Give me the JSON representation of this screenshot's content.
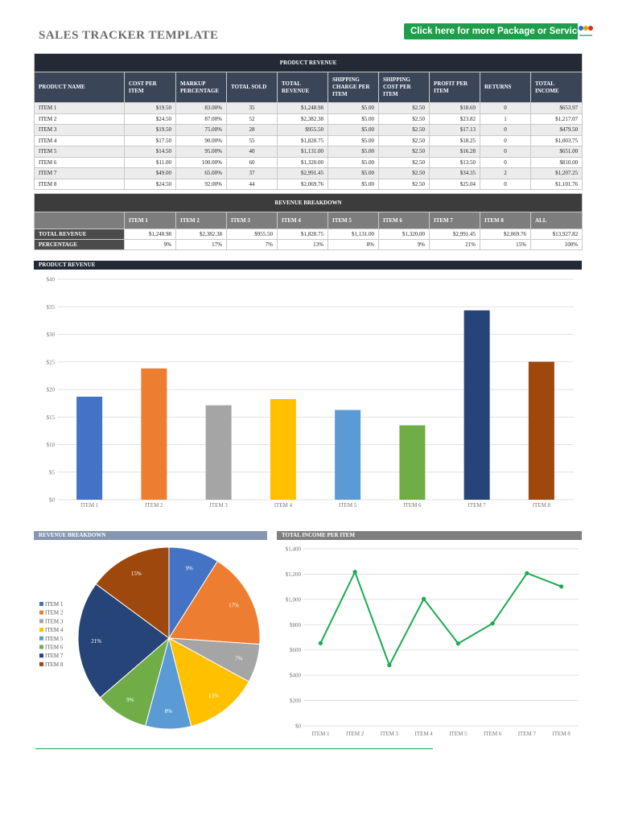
{
  "title": "SALES TRACKER TEMPLATE",
  "promo_label": "Click here for more Package or Services",
  "product_revenue": {
    "band": "PRODUCT REVENUE",
    "headers": [
      "PRODUCT NAME",
      "COST PER ITEM",
      "MARKUP PERCENTAGE",
      "TOTAL SOLD",
      "TOTAL REVENUE",
      "SHIPPING CHARGE PER ITEM",
      "SHIPPING COST PER ITEM",
      "PROFIT PER ITEM",
      "RETURNS",
      "TOTAL INCOME"
    ],
    "rows": [
      [
        "ITEM 1",
        "$19.50",
        "83.00%",
        "35",
        "$1,248.98",
        "$5.00",
        "$2.50",
        "$18.69",
        "0",
        "$653.97"
      ],
      [
        "ITEM 2",
        "$24.50",
        "87.00%",
        "52",
        "$2,382.38",
        "$5.00",
        "$2.50",
        "$23.82",
        "1",
        "$1,217.07"
      ],
      [
        "ITEM 3",
        "$19.50",
        "75.00%",
        "28",
        "$955.50",
        "$5.00",
        "$2.50",
        "$17.13",
        "0",
        "$479.50"
      ],
      [
        "ITEM 4",
        "$17.50",
        "90.00%",
        "55",
        "$1,828.75",
        "$5.00",
        "$2.50",
        "$18.25",
        "0",
        "$1,003.75"
      ],
      [
        "ITEM 5",
        "$14.50",
        "95.00%",
        "40",
        "$1,131.00",
        "$5.00",
        "$2.50",
        "$16.28",
        "0",
        "$651.00"
      ],
      [
        "ITEM 6",
        "$11.00",
        "100.00%",
        "60",
        "$1,320.00",
        "$5.00",
        "$2.50",
        "$13.50",
        "0",
        "$810.00"
      ],
      [
        "ITEM 7",
        "$49.00",
        "65.00%",
        "37",
        "$2,991.45",
        "$5.00",
        "$2.50",
        "$34.35",
        "2",
        "$1,207.25"
      ],
      [
        "ITEM 8",
        "$24.50",
        "92.00%",
        "44",
        "$2,069.76",
        "$5.00",
        "$2.50",
        "$25.04",
        "0",
        "$1,101.76"
      ]
    ]
  },
  "revenue_breakdown": {
    "band": "REVENUE BREAKDOWN",
    "headers": [
      "",
      "ITEM 1",
      "ITEM 2",
      "ITEM 3",
      "ITEM 4",
      "ITEM 5",
      "ITEM 6",
      "ITEM 7",
      "ITEM 8",
      "ALL"
    ],
    "rows": [
      [
        "TOTAL REVENUE",
        "$1,248.98",
        "$2,382.38",
        "$955.50",
        "$1,828.75",
        "$1,131.00",
        "$1,320.00",
        "$2,991.45",
        "$2,069.76",
        "$13,927.82"
      ],
      [
        "PERCENTAGE",
        "9%",
        "17%",
        "7%",
        "13%",
        "8%",
        "9%",
        "21%",
        "15%",
        "100%"
      ]
    ]
  },
  "colors": {
    "item1": "#4472c4",
    "item2": "#ed7d31",
    "item3": "#a5a5a5",
    "item4": "#ffc000",
    "item5": "#5b9bd5",
    "item6": "#70ad47",
    "item7": "#264478",
    "item8": "#9e480e",
    "line": "#1aab4f",
    "band_dark": "#232a36",
    "promo_green": "#1e9e4a"
  },
  "chart_data": [
    {
      "type": "bar",
      "title": "PRODUCT REVENUE",
      "categories": [
        "ITEM 1",
        "ITEM 2",
        "ITEM 3",
        "ITEM 4",
        "ITEM 5",
        "ITEM 6",
        "ITEM 7",
        "ITEM 8"
      ],
      "values": [
        18.69,
        23.82,
        17.13,
        18.25,
        16.28,
        13.5,
        34.35,
        25.04
      ],
      "ylim": [
        0,
        40
      ],
      "yticks": [
        "$0",
        "$5",
        "$10",
        "$15",
        "$20",
        "$25",
        "$30",
        "$35",
        "$40"
      ],
      "grid": true
    },
    {
      "type": "pie",
      "title": "REVENUE BREAKDOWN",
      "categories": [
        "ITEM 1",
        "ITEM 2",
        "ITEM 3",
        "ITEM 4",
        "ITEM 5",
        "ITEM 6",
        "ITEM 7",
        "ITEM 8"
      ],
      "values": [
        1248.98,
        2382.38,
        955.5,
        1828.75,
        1131.0,
        1320.0,
        2991.45,
        2069.76
      ],
      "labels": [
        "9%",
        "17%",
        "7%",
        "13%",
        "8%",
        "9%",
        "21%",
        "15%"
      ],
      "legend": "left"
    },
    {
      "type": "line",
      "title": "TOTAL INCOME PER ITEM",
      "categories": [
        "ITEM 1",
        "ITEM 2",
        "ITEM 3",
        "ITEM 4",
        "ITEM 5",
        "ITEM 6",
        "ITEM 7",
        "ITEM 8"
      ],
      "values": [
        653.97,
        1217.07,
        479.5,
        1003.75,
        651.0,
        810.0,
        1207.25,
        1101.76
      ],
      "ylim": [
        0,
        1400
      ],
      "yticks": [
        "$0",
        "$200",
        "$400",
        "$600",
        "$800",
        "$1,000",
        "$1,200",
        "$1,400"
      ],
      "grid": true
    }
  ]
}
